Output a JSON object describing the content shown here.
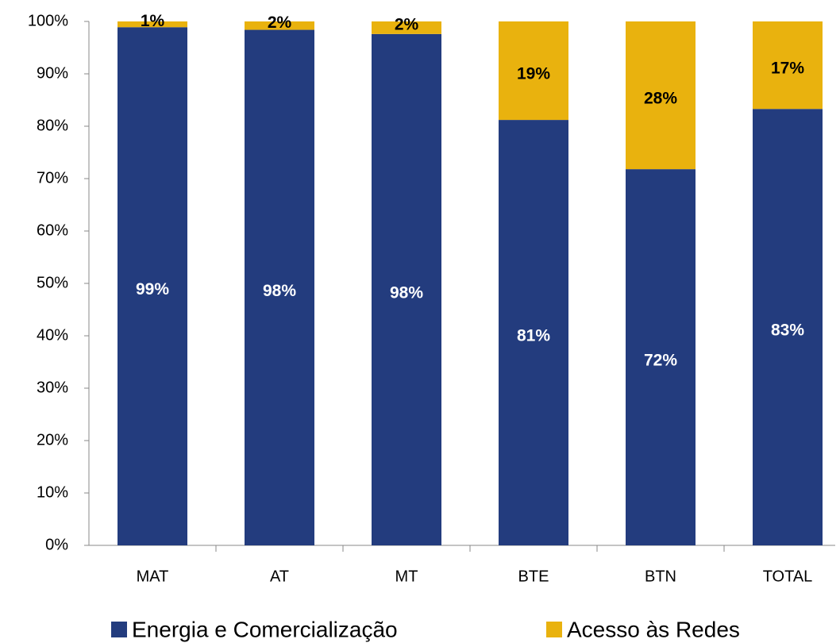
{
  "chart_data": {
    "type": "stacked_bar",
    "categories": [
      "MAT",
      "AT",
      "MT",
      "BTE",
      "BTN",
      "TOTAL"
    ],
    "series": [
      {
        "name": "Energia e Comercialização",
        "color": "#233c7e",
        "values": [
          98.9,
          98.4,
          97.6,
          81.2,
          71.8,
          83.3
        ],
        "value_labels": [
          "99%",
          "98%",
          "98%",
          "81%",
          "72%",
          "83%"
        ]
      },
      {
        "name": "Acesso às Redes",
        "color": "#e9b20e",
        "values": [
          1.1,
          1.6,
          2.4,
          18.8,
          28.2,
          16.7
        ],
        "value_labels": [
          "1%",
          "2%",
          "2%",
          "19%",
          "28%",
          "17%"
        ]
      }
    ],
    "ylim": [
      0,
      100
    ],
    "yticks": [
      {
        "value": 0,
        "label": "0%"
      },
      {
        "value": 10,
        "label": "10%"
      },
      {
        "value": 20,
        "label": "20%"
      },
      {
        "value": 30,
        "label": "30%"
      },
      {
        "value": 40,
        "label": "40%"
      },
      {
        "value": 50,
        "label": "50%"
      },
      {
        "value": 60,
        "label": "60%"
      },
      {
        "value": 70,
        "label": "70%"
      },
      {
        "value": 80,
        "label": "80%"
      },
      {
        "value": 90,
        "label": "90%"
      },
      {
        "value": 100,
        "label": "100%"
      }
    ],
    "legend": "bottom"
  }
}
